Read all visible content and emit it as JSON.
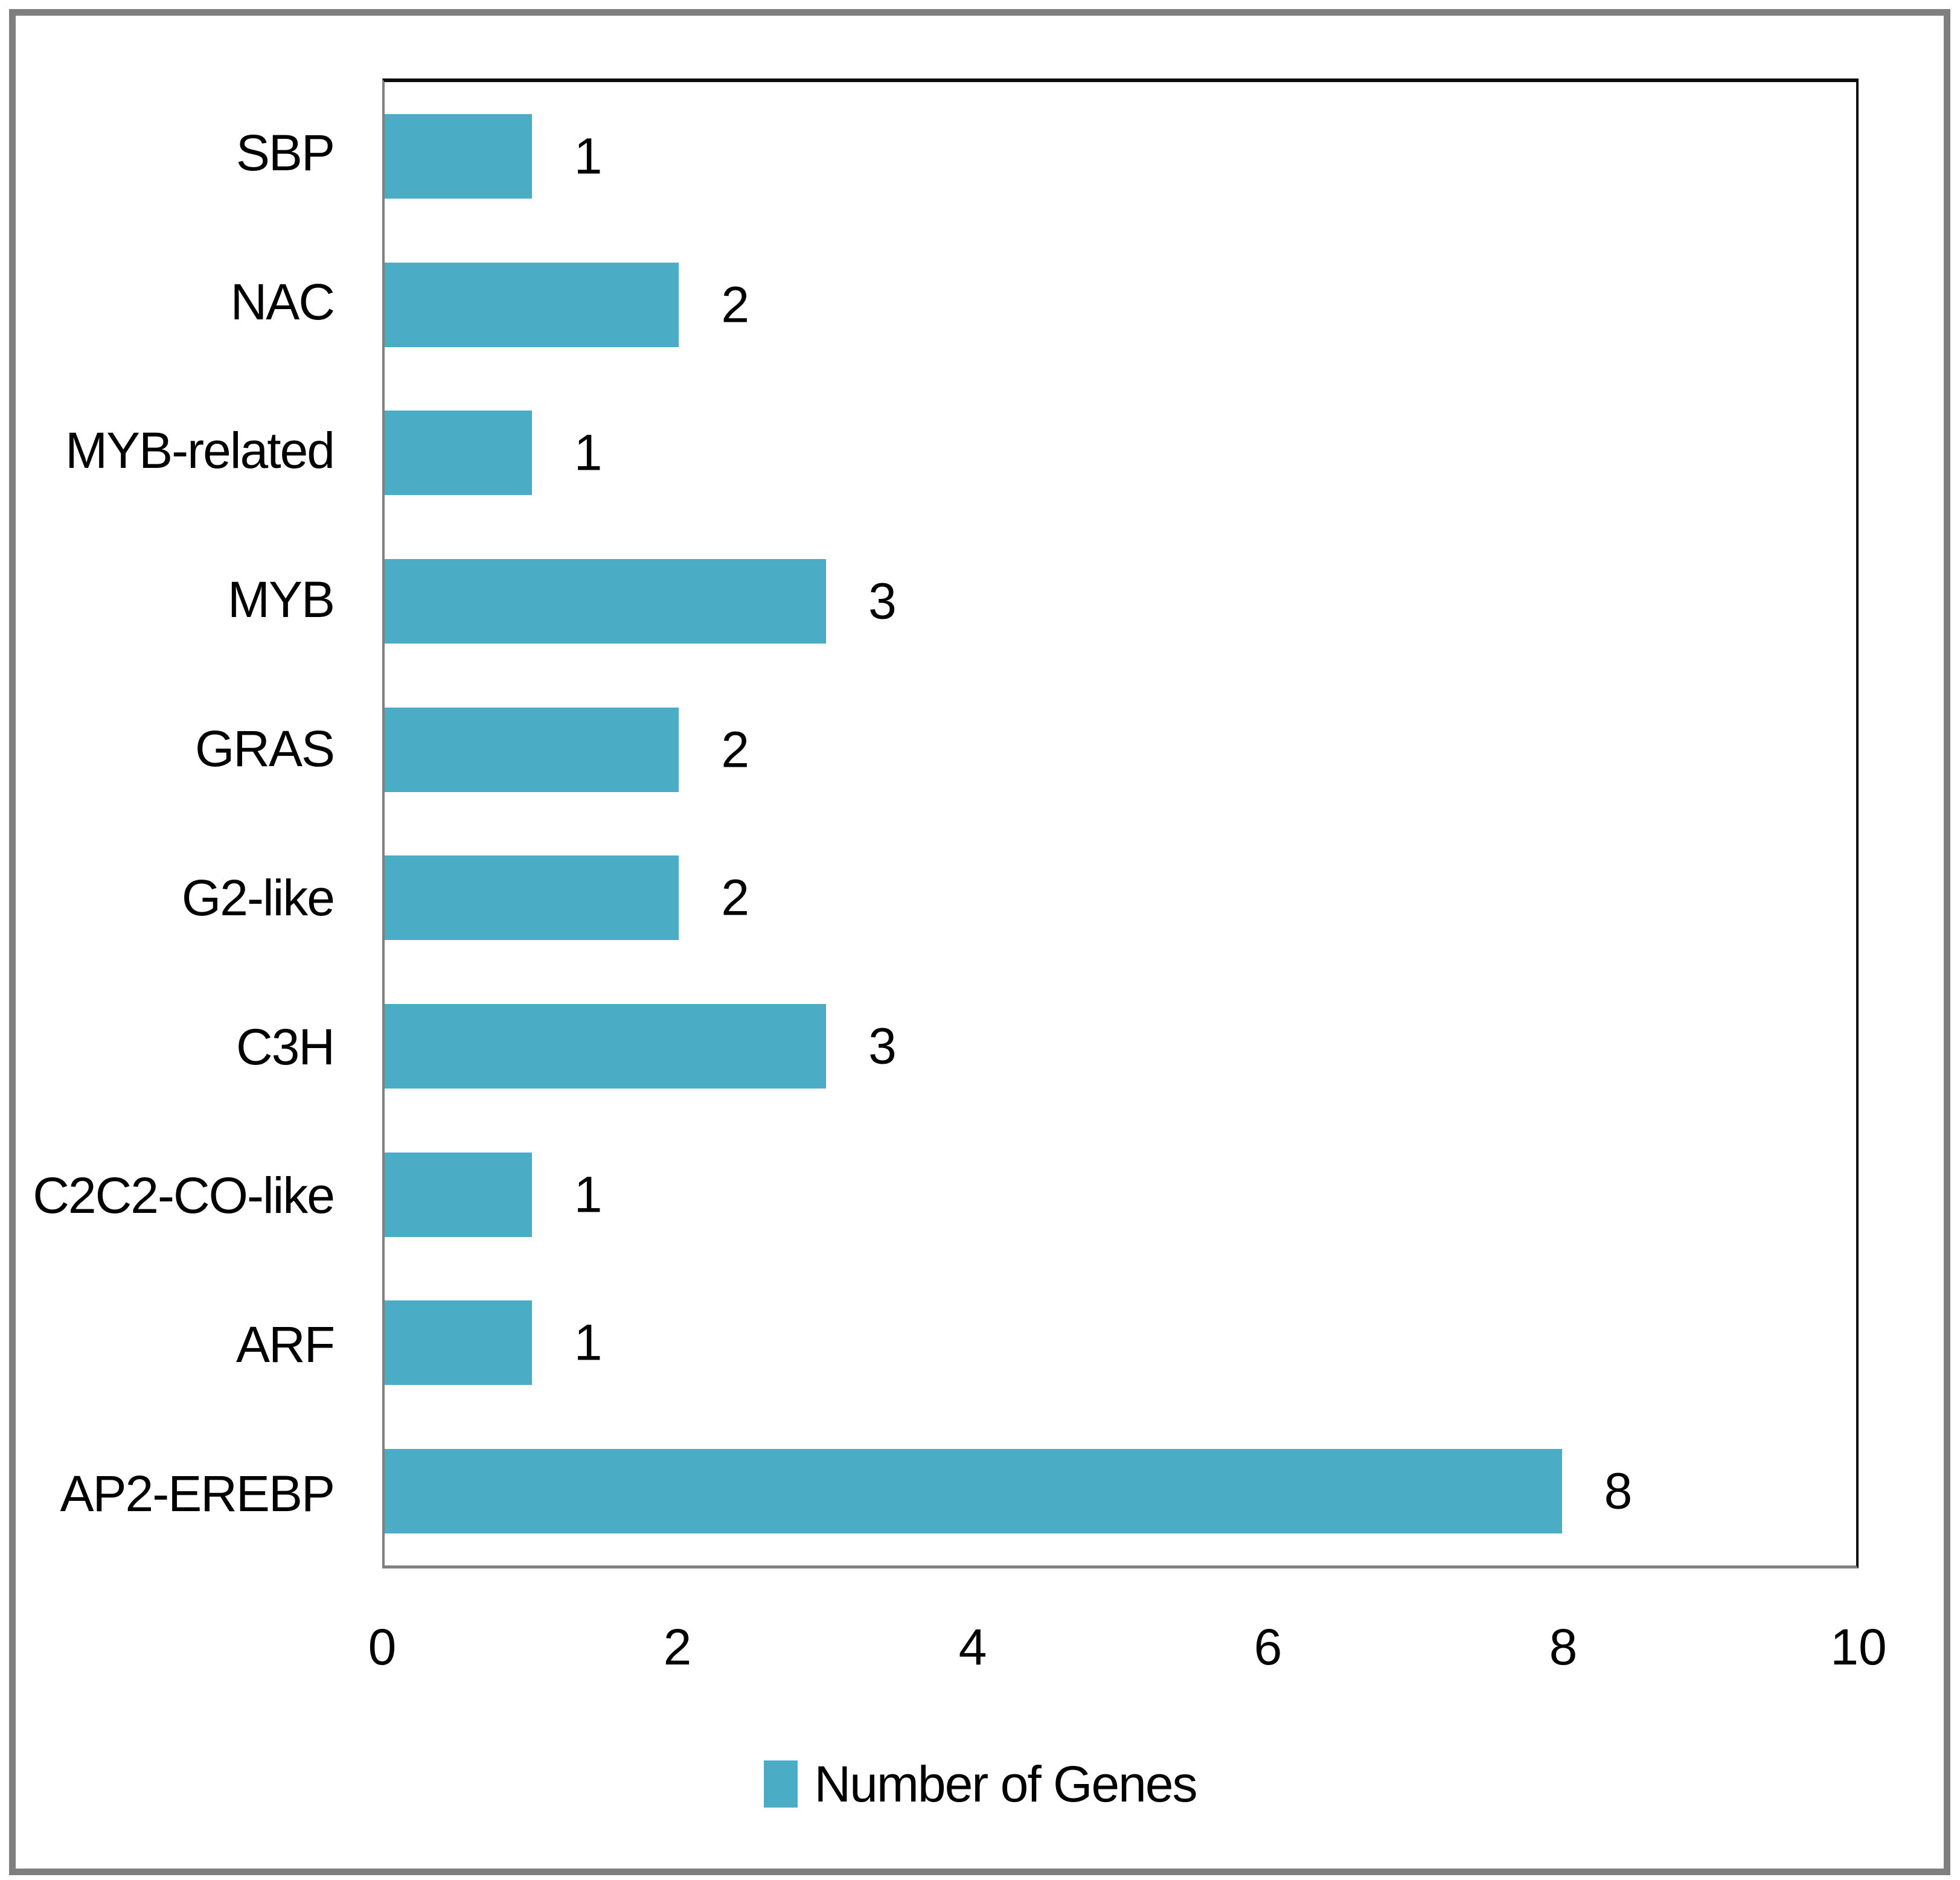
{
  "frame": {
    "border_color": "#7f7f7f",
    "background": "#ffffff"
  },
  "colors": {
    "bar": "#4BACC6",
    "axis_gray": "#808080",
    "plot_border_black": "#0d0d0d",
    "text": "#000000"
  },
  "chart_data": {
    "type": "bar",
    "orientation": "horizontal",
    "title": "",
    "xlabel": "",
    "ylabel": "",
    "categories": [
      "SBP",
      "NAC",
      "MYB-related",
      "MYB",
      "GRAS",
      "G2-like",
      "C3H",
      "C2C2-CO-like",
      "ARF",
      "AP2-EREBP"
    ],
    "categories_order": "top-to-bottom",
    "values": [
      1,
      2,
      1,
      3,
      2,
      2,
      3,
      1,
      1,
      8
    ],
    "bar_value_labels": [
      "1",
      "2",
      "1",
      "3",
      "2",
      "2",
      "3",
      "1",
      "1",
      "8"
    ],
    "xlim": [
      0,
      10
    ],
    "x_ticks": [
      "0",
      "2",
      "4",
      "6",
      "8",
      "10"
    ],
    "grid": false,
    "bar_color": "#4BACC6",
    "legend": {
      "position": "bottom-center",
      "entries": [
        {
          "label": "Number of Genes",
          "color": "#4BACC6"
        }
      ]
    }
  }
}
